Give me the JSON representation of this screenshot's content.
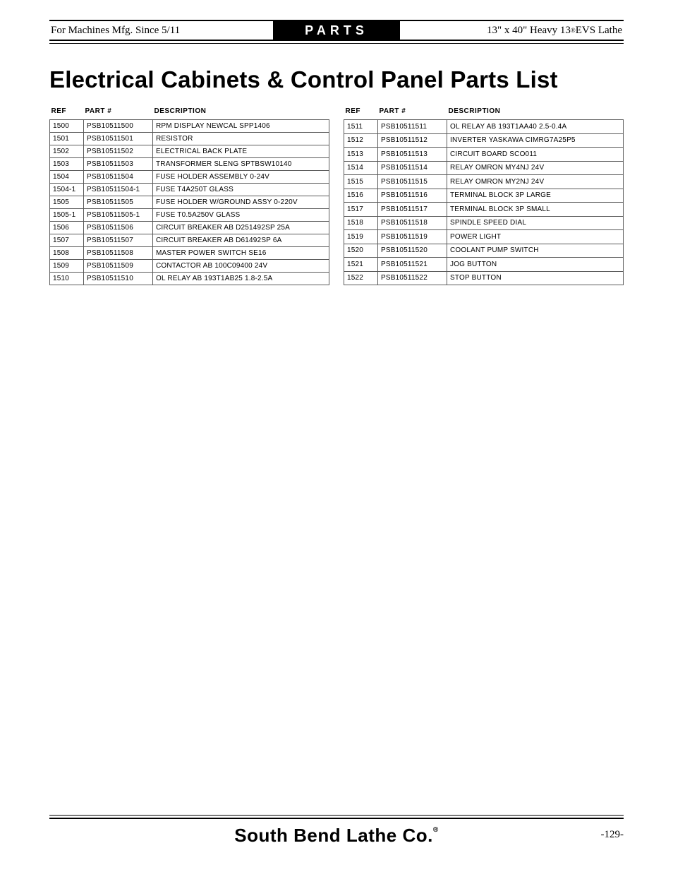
{
  "header": {
    "left": "For Machines Mfg. Since 5/11",
    "center": "PARTS",
    "right_prefix": "13\" x 40\" Heavy 13",
    "right_reg": "®",
    "right_suffix": " EVS Lathe"
  },
  "title": "Electrical Cabinets & Control Panel Parts List",
  "columns": {
    "ref": "REF",
    "part": "PART #",
    "desc": "DESCRIPTION"
  },
  "left_rows": [
    {
      "ref": "1500",
      "part": "PSB10511500",
      "desc": "RPM DISPLAY NEWCAL SPP1406"
    },
    {
      "ref": "1501",
      "part": "PSB10511501",
      "desc": "RESISTOR"
    },
    {
      "ref": "1502",
      "part": "PSB10511502",
      "desc": "ELECTRICAL BACK PLATE"
    },
    {
      "ref": "1503",
      "part": "PSB10511503",
      "desc": "TRANSFORMER SLENG SPTBSW10140"
    },
    {
      "ref": "1504",
      "part": "PSB10511504",
      "desc": "FUSE HOLDER ASSEMBLY 0-24V"
    },
    {
      "ref": "1504-1",
      "part": "PSB10511504-1",
      "desc": "FUSE T4A250T GLASS"
    },
    {
      "ref": "1505",
      "part": "PSB10511505",
      "desc": "FUSE HOLDER W/GROUND ASSY 0-220V"
    },
    {
      "ref": "1505-1",
      "part": "PSB10511505-1",
      "desc": "FUSE T0.5A250V GLASS"
    },
    {
      "ref": "1506",
      "part": "PSB10511506",
      "desc": "CIRCUIT BREAKER AB D251492SP 25A"
    },
    {
      "ref": "1507",
      "part": "PSB10511507",
      "desc": "CIRCUIT BREAKER AB D61492SP 6A"
    },
    {
      "ref": "1508",
      "part": "PSB10511508",
      "desc": "MASTER POWER SWITCH SE16"
    },
    {
      "ref": "1509",
      "part": "PSB10511509",
      "desc": "CONTACTOR AB 100C09400 24V"
    },
    {
      "ref": "1510",
      "part": "PSB10511510",
      "desc": "OL RELAY AB 193T1AB25 1.8-2.5A"
    }
  ],
  "right_rows": [
    {
      "ref": "1511",
      "part": "PSB10511511",
      "desc": "OL RELAY AB 193T1AA40 2.5-0.4A"
    },
    {
      "ref": "1512",
      "part": "PSB10511512",
      "desc": "INVERTER YASKAWA CIMRG7A25P5"
    },
    {
      "ref": "1513",
      "part": "PSB10511513",
      "desc": "CIRCUIT BOARD SCO011"
    },
    {
      "ref": "1514",
      "part": "PSB10511514",
      "desc": "RELAY OMRON MY4NJ 24V"
    },
    {
      "ref": "1515",
      "part": "PSB10511515",
      "desc": "RELAY OMRON MY2NJ 24V"
    },
    {
      "ref": "1516",
      "part": "PSB10511516",
      "desc": "TERMINAL BLOCK 3P LARGE"
    },
    {
      "ref": "1517",
      "part": "PSB10511517",
      "desc": "TERMINAL BLOCK 3P SMALL"
    },
    {
      "ref": "1518",
      "part": "PSB10511518",
      "desc": "SPINDLE SPEED DIAL"
    },
    {
      "ref": "1519",
      "part": "PSB10511519",
      "desc": "POWER LIGHT"
    },
    {
      "ref": "1520",
      "part": "PSB10511520",
      "desc": "COOLANT PUMP SWITCH"
    },
    {
      "ref": "1521",
      "part": "PSB10511521",
      "desc": "JOG BUTTON"
    },
    {
      "ref": "1522",
      "part": "PSB10511522",
      "desc": "STOP BUTTON"
    }
  ],
  "footer": {
    "brand": "South Bend Lathe Co.",
    "reg": "®",
    "page": "-129-"
  }
}
